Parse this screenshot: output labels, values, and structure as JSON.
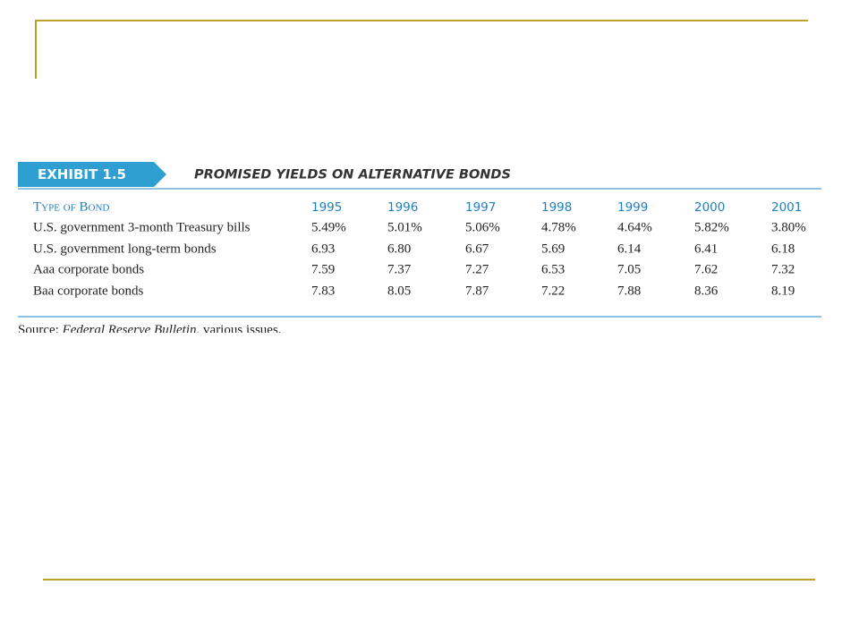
{
  "exhibit": {
    "label": "EXHIBIT 1.5",
    "title": "PROMISED YIELDS ON ALTERNATIVE BONDS"
  },
  "table": {
    "header": [
      "Type of Bond",
      "1995",
      "1996",
      "1997",
      "1998",
      "1999",
      "2000",
      "2001"
    ],
    "rows": [
      [
        "U.S. government 3-month Treasury bills",
        "5.49%",
        "5.01%",
        "5.06%",
        "4.78%",
        "4.64%",
        "5.82%",
        "3.80%"
      ],
      [
        "U.S. government long-term bonds",
        "6.93",
        "6.80",
        "6.67",
        "5.69",
        "6.14",
        "6.41",
        "6.18"
      ],
      [
        "Aaa corporate bonds",
        "7.59",
        "7.37",
        "7.27",
        "6.53",
        "7.05",
        "7.62",
        "7.32"
      ],
      [
        "Baa corporate bonds",
        "7.83",
        "8.05",
        "7.87",
        "7.22",
        "7.88",
        "8.36",
        "8.19"
      ]
    ]
  },
  "source": {
    "label": "Source: ",
    "publication": "Federal Reserve Bulletin",
    "note": ", various issues."
  }
}
